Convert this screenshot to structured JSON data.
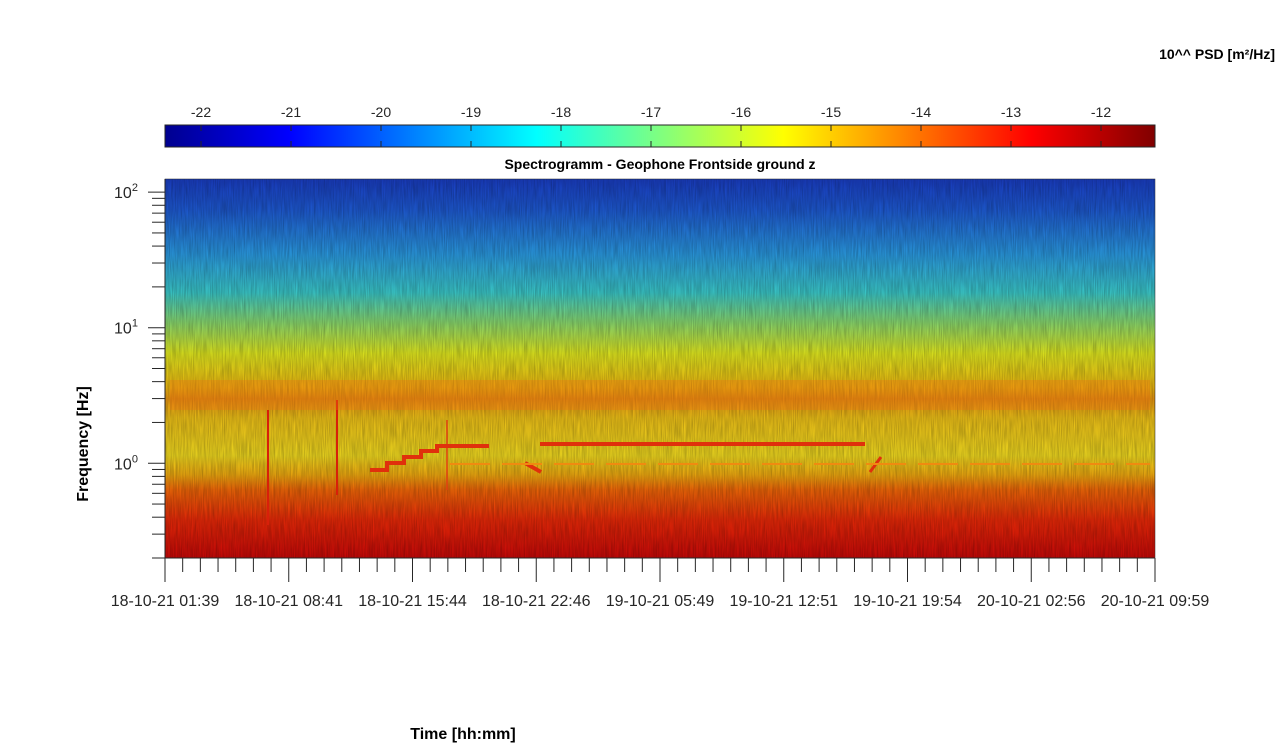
{
  "chart_data": {
    "type": "heatmap",
    "title": "Spectrogramm - Geophone Frontside ground z",
    "xlabel": "Time [hh:mm]",
    "ylabel": "Frequency [Hz]",
    "y_scale": "log",
    "ylim": [
      0.2,
      125
    ],
    "y_ticks": [
      {
        "base": "10",
        "exp": "0",
        "value": 1
      },
      {
        "base": "10",
        "exp": "1",
        "value": 10
      },
      {
        "base": "10",
        "exp": "2",
        "value": 100
      }
    ],
    "x_tick_labels": [
      "18-10-21  01:39",
      "18-10-21  08:41",
      "18-10-21  15:44",
      "18-10-21  22:46",
      "19-10-21  05:49",
      "19-10-21  12:51",
      "19-10-21  19:54",
      "20-10-21  02:56",
      "20-10-21  09:59"
    ],
    "colorbar": {
      "label": "10^^ PSD [m²/Hz]",
      "colormap": "jet",
      "range": [
        -22.4,
        -11.4
      ],
      "ticks": [
        "-22",
        "-21",
        "-20",
        "-19",
        "-18",
        "-17",
        "-16",
        "-15",
        "-14",
        "-13",
        "-12"
      ],
      "placement": "top"
    },
    "bands": [
      {
        "f_min": 0.2,
        "f_max": 0.35,
        "psd": -12.2
      },
      {
        "f_min": 0.35,
        "f_max": 0.7,
        "psd": -13.0
      },
      {
        "f_min": 0.7,
        "f_max": 1.2,
        "psd": -14.6
      },
      {
        "f_min": 1.2,
        "f_max": 2.5,
        "psd": -15.4
      },
      {
        "f_min": 2.5,
        "f_max": 4.5,
        "psd": -14.6
      },
      {
        "f_min": 4.5,
        "f_max": 10,
        "psd": -16.5
      },
      {
        "f_min": 10,
        "f_max": 40,
        "psd": -18.2
      },
      {
        "f_min": 40,
        "f_max": 125,
        "psd": -20.8
      }
    ]
  }
}
